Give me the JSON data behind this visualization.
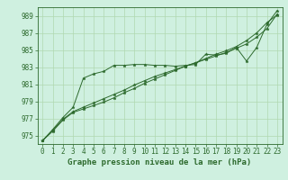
{
  "title": "Graphe pression niveau de la mer (hPa)",
  "background_color": "#cff0e0",
  "line_color": "#2d6a2d",
  "grid_color": "#b0d8b0",
  "xlim": [
    -0.5,
    23.5
  ],
  "ylim": [
    974.0,
    990.0
  ],
  "yticks": [
    975,
    977,
    979,
    981,
    983,
    985,
    987,
    989
  ],
  "xticks": [
    0,
    1,
    2,
    3,
    4,
    5,
    6,
    7,
    8,
    9,
    10,
    11,
    12,
    13,
    14,
    15,
    16,
    17,
    18,
    19,
    20,
    21,
    22,
    23
  ],
  "series1_x": [
    0,
    1,
    2,
    3,
    4,
    5,
    6,
    7,
    8,
    9,
    10,
    11,
    12,
    13,
    14,
    15,
    16,
    17,
    18,
    19,
    20,
    21,
    22,
    23
  ],
  "series1": [
    974.4,
    975.7,
    977.1,
    978.3,
    981.7,
    982.2,
    982.5,
    983.2,
    983.2,
    983.3,
    983.3,
    983.2,
    983.2,
    983.1,
    983.2,
    983.3,
    984.5,
    984.4,
    984.6,
    985.3,
    983.7,
    985.3,
    988.0,
    989.6
  ],
  "series2_x": [
    0,
    1,
    2,
    3,
    4,
    5,
    6,
    7,
    8,
    9,
    10,
    11,
    12,
    13,
    14,
    15,
    16,
    17,
    18,
    19,
    20,
    21,
    22,
    23
  ],
  "series2": [
    974.4,
    975.6,
    976.9,
    977.8,
    978.3,
    978.8,
    979.3,
    979.8,
    980.3,
    980.9,
    981.4,
    981.9,
    982.3,
    982.7,
    983.1,
    983.5,
    983.9,
    984.3,
    984.7,
    985.2,
    985.7,
    986.5,
    987.5,
    989.2
  ],
  "series3_x": [
    0,
    1,
    2,
    3,
    4,
    5,
    6,
    7,
    8,
    9,
    10,
    11,
    12,
    13,
    14,
    15,
    16,
    17,
    18,
    19,
    20,
    21,
    22,
    23
  ],
  "series3": [
    974.4,
    975.5,
    976.8,
    977.7,
    978.1,
    978.5,
    978.9,
    979.4,
    980.0,
    980.5,
    981.1,
    981.6,
    982.1,
    982.6,
    983.1,
    983.5,
    984.0,
    984.5,
    984.9,
    985.4,
    986.1,
    987.0,
    988.2,
    989.1
  ],
  "tick_fontsize": 5.5,
  "label_fontsize": 6.5
}
